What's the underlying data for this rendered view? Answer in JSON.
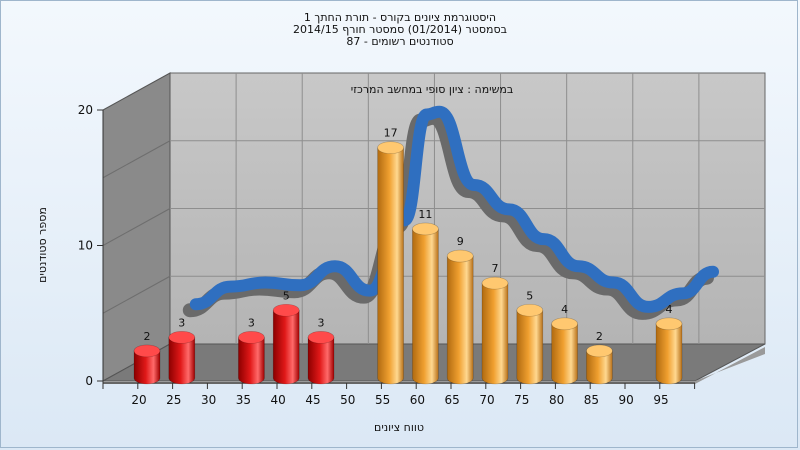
{
  "title_lines": [
    "היסטוגרמת ציונים בקורס - תורת החתך 1",
    "בסמסטר  (01/2014)  סמסטר חורף 2014/15",
    "סטודנטים רשומים - 87"
  ],
  "colors": {
    "failing_bar": "#e01818",
    "passing_bar": "#f0a030",
    "curve": "#2f6fc0",
    "back_wall": "#b4b4b4",
    "side_wall": "#8a8a8a",
    "floor": "#7a7a7a"
  },
  "chart_data": {
    "type": "bar",
    "subtitle": "במשימה : ציון סופי במחשב המרכזי",
    "xlabel": "טווח ציונים",
    "ylabel": "מספר סטודנטים",
    "y_ticks": [
      "0",
      "10",
      "20"
    ],
    "ylim": [
      0,
      20
    ],
    "categories": [
      "20",
      "25",
      "30",
      "35",
      "40",
      "45",
      "50",
      "55",
      "60",
      "65",
      "70",
      "75",
      "80",
      "85",
      "90",
      "95"
    ],
    "values": [
      2,
      3,
      null,
      3,
      5,
      3,
      null,
      17,
      11,
      9,
      7,
      5,
      4,
      2,
      null,
      4
    ],
    "failing_categories": [
      "20",
      "25",
      "30",
      "35",
      "40",
      "45",
      "50"
    ],
    "has_distribution_curve": true,
    "grid": true
  }
}
